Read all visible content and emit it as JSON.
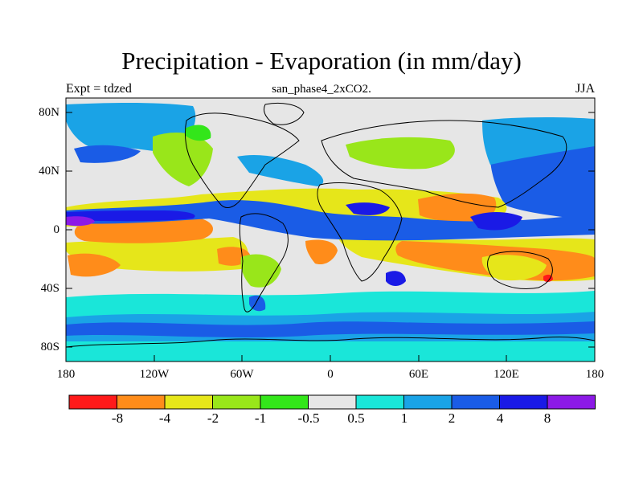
{
  "title": "Precipitation - Evaporation (in mm/day)",
  "subtitle": "san_phase4_2xCO2.",
  "left_label": "Expt = tdzed",
  "right_label": "JJA",
  "map": {
    "lon_range": [
      -180,
      180
    ],
    "lat_range": [
      -90,
      90
    ],
    "lat_ticks": [
      "80N",
      "40N",
      "0",
      "40S",
      "80S"
    ],
    "lon_ticks": [
      "180",
      "120W",
      "60W",
      "0",
      "60E",
      "120E",
      "180"
    ]
  },
  "colorbar": {
    "labels": [
      "-8",
      "-4",
      "-2",
      "-1",
      "-0.5",
      "0.5",
      "1",
      "2",
      "4",
      "8"
    ],
    "colors": [
      "#ff1a1a",
      "#ff8c1a",
      "#e6e61a",
      "#99e61a",
      "#33e61a",
      "#e6e6e6",
      "#1ae6d9",
      "#1aa3e6",
      "#1a5ce6",
      "#1a1ae6",
      "#8c1ae6"
    ]
  }
}
